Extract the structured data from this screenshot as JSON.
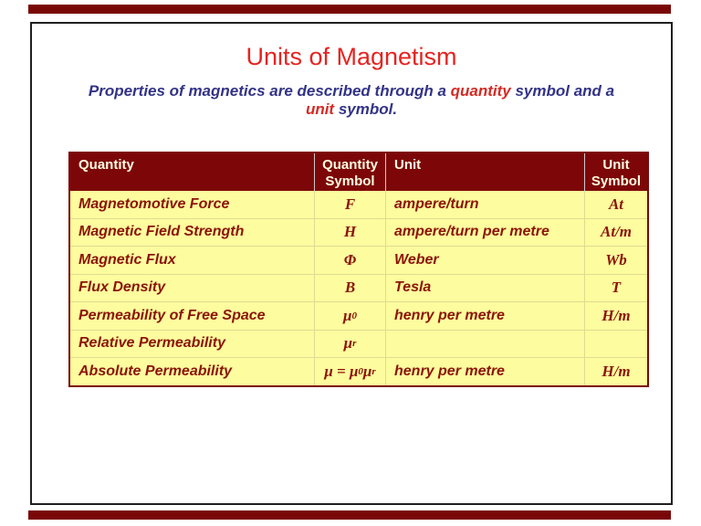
{
  "slide": {
    "title": "Units of Magnetism",
    "subtitle": {
      "line1_part1": "Properties of magnetics are described through a ",
      "line1_highlight": "quantity",
      "line1_part2": " symbol and a",
      "line2_highlight": "unit",
      "line2_part2": " symbol."
    }
  },
  "table": {
    "headers": [
      "Quantity",
      "Quantity Symbol",
      "Unit",
      "Unit Symbol"
    ],
    "rows": [
      {
        "quantity": "Magnetomotive Force",
        "quantity_symbol": "F",
        "unit": "ampere/turn",
        "unit_symbol": "At"
      },
      {
        "quantity": "Magnetic Field Strength",
        "quantity_symbol": "H",
        "unit": "ampere/turn per metre",
        "unit_symbol": "At/m"
      },
      {
        "quantity": "Magnetic Flux",
        "quantity_symbol": "Φ",
        "unit": "Weber",
        "unit_symbol": "Wb"
      },
      {
        "quantity": "Flux Density",
        "quantity_symbol": "B",
        "unit": "Tesla",
        "unit_symbol": "T"
      },
      {
        "quantity": "Permeability of Free Space",
        "quantity_symbol": "μ_{0}",
        "unit": "henry per metre",
        "unit_symbol": "H/m"
      },
      {
        "quantity": "Relative Permeability",
        "quantity_symbol": "μ_{r}",
        "unit": "",
        "unit_symbol": ""
      },
      {
        "quantity": "Absolute Permeability",
        "quantity_symbol": "μ = μ_{0}μ_{r}",
        "unit": "henry per metre",
        "unit_symbol": "H/m"
      }
    ]
  },
  "colors": {
    "deck_edge_maroon": "#7a0708",
    "table_header_bg": "#7d0708",
    "table_header_text": "#fffde1",
    "table_body_bg": "#fdfc9e",
    "table_text_maroon": "#8b1408",
    "title_red": "#e52420",
    "subtitle_navy": "#333387",
    "subtitle_highlight_red": "#d42a24",
    "slide_border": "#1f1f1f"
  }
}
